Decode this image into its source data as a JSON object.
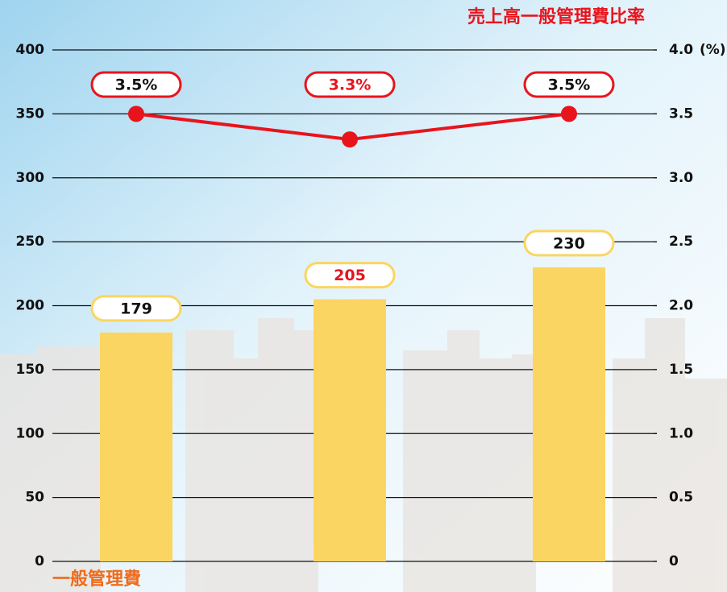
{
  "chart_data": {
    "type": "bar+line",
    "categories": [
      null,
      null,
      null
    ],
    "series": [
      {
        "name": "一般管理費",
        "type": "bar",
        "color": "#fbd561",
        "values": [
          179,
          205,
          230
        ]
      },
      {
        "name": "売上高一般管理費比率",
        "type": "line",
        "axis": "y2",
        "color": "#e8141c",
        "values": [
          3.5,
          3.3,
          3.5
        ],
        "value_labels": [
          "3.5%",
          "3.3%",
          "3.5%"
        ]
      }
    ],
    "ylim": [
      0,
      400
    ],
    "yticks": [
      0,
      50,
      100,
      150,
      200,
      250,
      300,
      350,
      400
    ],
    "y2lim": [
      0,
      4
    ],
    "y2label": "(%)",
    "y2ticks": [
      0,
      0.5,
      {
        "value": 1,
        "label": "1.0"
      },
      1.5,
      {
        "value": 2,
        "label": "2.0"
      },
      2.5,
      {
        "value": 3,
        "label": "3.0"
      },
      3.5,
      {
        "value": 4,
        "label": "4.0"
      }
    ],
    "grid": true
  }
}
